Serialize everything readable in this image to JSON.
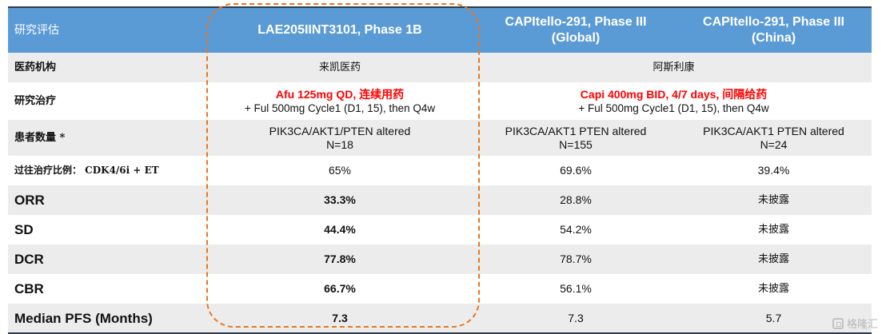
{
  "header": {
    "label": "研究评估",
    "col_lae": "LAE205IINT3101, Phase 1B",
    "col_capi_global_1": "CAPItello-291, Phase III",
    "col_capi_global_2": "(Global)",
    "col_capi_china_1": "CAPItello-291, Phase III",
    "col_capi_china_2": "(China)"
  },
  "rows": {
    "org": {
      "label": "医药机构",
      "lae": "来凯医药",
      "capi": "阿斯利康"
    },
    "treatment": {
      "label": "研究治疗",
      "lae_red": "Afu 125mg QD, 连续用药",
      "lae_sub": "+ Ful 500mg Cycle1 (D1, 15), then Q4w",
      "capi_red": "Capi 400mg BID, 4/7 days, 间隔给药",
      "capi_sub": "+ Ful 500mg Cycle1 (D1, 15), then Q4w"
    },
    "patients": {
      "label": "患者数量 *",
      "lae_1": "PIK3CA/AKT1/PTEN altered",
      "lae_2": "N=18",
      "global_1": "PIK3CA/AKT1 PTEN altered",
      "global_2": "N=155",
      "china_1": "PIK3CA/AKT1 PTEN altered",
      "china_2": "N=24"
    },
    "prior": {
      "label": "过往治疗比例： CDK4/6i + ET",
      "lae": "65%",
      "global": "69.6%",
      "china": "39.4%"
    },
    "orr": {
      "label": "ORR",
      "lae": "33.3%",
      "global": "28.8%",
      "china": "未披露"
    },
    "sd": {
      "label": "SD",
      "lae": "44.4%",
      "global": "54.2%",
      "china": "未披露"
    },
    "dcr": {
      "label": "DCR",
      "lae": "77.8%",
      "global": "78.7%",
      "china": "未披露"
    },
    "cbr": {
      "label": "CBR",
      "lae": "66.7%",
      "global": "56.1%",
      "china": "未披露"
    },
    "pfs": {
      "label": "Median PFS (Months)",
      "lae": "7.3",
      "global": "7.3",
      "china": "5.7"
    }
  },
  "watermark": {
    "text": "格隆汇",
    "icon": "gelonghui-logo-icon"
  },
  "colors": {
    "header_bg": "#5b9bd5",
    "highlight": "#e87722",
    "red_text": "#ff0000",
    "grey_row": "#ececec"
  }
}
